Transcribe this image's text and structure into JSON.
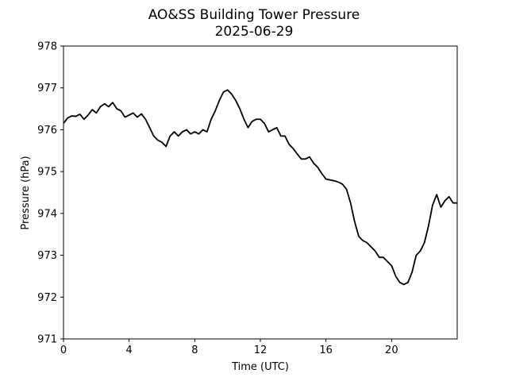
{
  "chart_data": {
    "type": "line",
    "title": "AO&SS Building Tower Pressure",
    "subtitle": "2025-06-29",
    "xlabel": "Time (UTC)",
    "ylabel": "Pressure (hPa)",
    "xlim": [
      0,
      24
    ],
    "ylim": [
      971,
      978
    ],
    "x_ticks": [
      0,
      4,
      8,
      12,
      16,
      20
    ],
    "y_ticks": [
      971,
      972,
      973,
      974,
      975,
      976,
      977,
      978
    ],
    "grid": false,
    "line_color": "#000000",
    "series": [
      {
        "x": [
          0.0,
          0.25,
          0.5,
          0.75,
          1.0,
          1.25,
          1.5,
          1.75,
          2.0,
          2.25,
          2.5,
          2.75,
          3.0,
          3.25,
          3.5,
          3.75,
          4.0,
          4.25,
          4.5,
          4.75,
          5.0,
          5.25,
          5.5,
          5.75,
          6.0,
          6.25,
          6.5,
          6.75,
          7.0,
          7.25,
          7.5,
          7.75,
          8.0,
          8.25,
          8.5,
          8.75,
          9.0,
          9.25,
          9.5,
          9.75,
          10.0,
          10.25,
          10.5,
          10.75,
          11.0,
          11.25,
          11.5,
          11.75,
          12.0,
          12.25,
          12.5,
          12.75,
          13.0,
          13.25,
          13.5,
          13.75,
          14.0,
          14.25,
          14.5,
          14.75,
          15.0,
          15.25,
          15.5,
          15.75,
          16.0,
          16.25,
          16.5,
          16.75,
          17.0,
          17.25,
          17.5,
          17.75,
          18.0,
          18.25,
          18.5,
          18.75,
          19.0,
          19.25,
          19.5,
          19.75,
          20.0,
          20.25,
          20.5,
          20.75,
          21.0,
          21.25,
          21.5,
          21.75,
          22.0,
          22.25,
          22.5,
          22.75,
          23.0,
          23.25,
          23.5,
          23.75,
          24.0
        ],
        "values": [
          976.15,
          976.28,
          976.33,
          976.32,
          976.37,
          976.25,
          976.35,
          976.48,
          976.4,
          976.55,
          976.62,
          976.55,
          976.65,
          976.5,
          976.45,
          976.3,
          976.35,
          976.4,
          976.3,
          976.38,
          976.25,
          976.05,
          975.85,
          975.75,
          975.7,
          975.6,
          975.85,
          975.95,
          975.85,
          975.95,
          976.0,
          975.9,
          975.95,
          975.9,
          976.0,
          975.95,
          976.25,
          976.45,
          976.7,
          976.9,
          976.95,
          976.85,
          976.7,
          976.5,
          976.25,
          976.05,
          976.2,
          976.25,
          976.25,
          976.15,
          975.95,
          976.0,
          976.05,
          975.85,
          975.85,
          975.65,
          975.55,
          975.42,
          975.3,
          975.3,
          975.35,
          975.2,
          975.1,
          974.95,
          974.82,
          974.8,
          974.78,
          974.75,
          974.7,
          974.58,
          974.25,
          973.8,
          973.45,
          973.35,
          973.3,
          973.2,
          973.1,
          972.95,
          972.95,
          972.85,
          972.75,
          972.5,
          972.35,
          972.3,
          972.35,
          972.6,
          973.0,
          973.1,
          973.3,
          973.7,
          974.2,
          974.45,
          974.15,
          974.3,
          974.4,
          974.25,
          974.25
        ]
      }
    ]
  }
}
